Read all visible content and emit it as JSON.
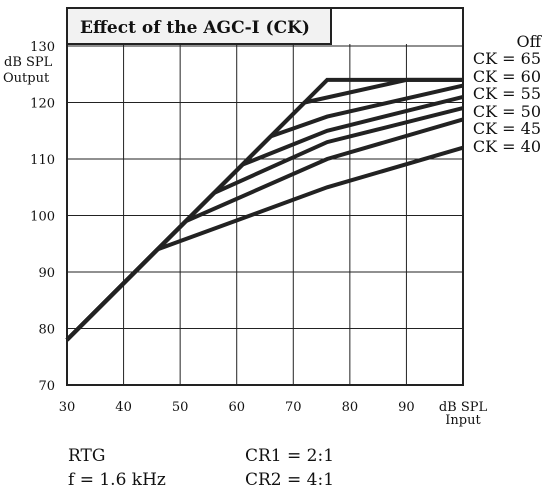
{
  "chart_data": {
    "type": "line",
    "title": "Effect of the AGC-I (CK)",
    "ylabel": [
      "dB SPL",
      "Output"
    ],
    "xlabel": [
      "dB SPL",
      "Input"
    ],
    "xlim": [
      30,
      100
    ],
    "ylim": [
      70,
      130
    ],
    "x_ticks": [
      30,
      40,
      50,
      60,
      70,
      80,
      90
    ],
    "y_ticks": [
      70,
      80,
      90,
      100,
      110,
      120,
      130
    ],
    "grid": true,
    "legend_position": "right",
    "colors": {
      "lines": "#222222",
      "grid": "#222222",
      "title_bg": "#f2f2f2"
    },
    "series": [
      {
        "name": "Off",
        "points": [
          [
            30,
            78
          ],
          [
            40,
            88
          ],
          [
            76,
            124
          ],
          [
            100,
            124
          ]
        ]
      },
      {
        "name": "CK = 65",
        "points": [
          [
            30,
            78
          ],
          [
            40,
            88
          ],
          [
            72,
            120
          ],
          [
            90,
            124
          ],
          [
            100,
            124
          ]
        ]
      },
      {
        "name": "CK = 60",
        "points": [
          [
            30,
            78
          ],
          [
            40,
            88
          ],
          [
            66,
            114
          ],
          [
            76,
            117.5
          ],
          [
            100,
            123
          ]
        ]
      },
      {
        "name": "CK = 55",
        "points": [
          [
            30,
            78
          ],
          [
            40,
            88
          ],
          [
            61,
            109
          ],
          [
            76,
            115
          ],
          [
            100,
            121
          ]
        ]
      },
      {
        "name": "CK = 50",
        "points": [
          [
            30,
            78
          ],
          [
            40,
            88
          ],
          [
            56,
            104
          ],
          [
            76,
            113
          ],
          [
            100,
            119
          ]
        ]
      },
      {
        "name": "CK = 45",
        "points": [
          [
            30,
            78
          ],
          [
            40,
            88
          ],
          [
            51,
            99
          ],
          [
            76,
            110
          ],
          [
            100,
            117
          ]
        ]
      },
      {
        "name": "CK = 40",
        "points": [
          [
            30,
            78
          ],
          [
            40,
            88
          ],
          [
            46,
            94
          ],
          [
            76,
            105
          ],
          [
            100,
            112
          ]
        ]
      }
    ]
  },
  "footnotes": {
    "left": [
      "RTG",
      "f = 1.6 kHz"
    ],
    "right": [
      "CR1 = 2:1",
      "CR2 = 4:1"
    ]
  }
}
